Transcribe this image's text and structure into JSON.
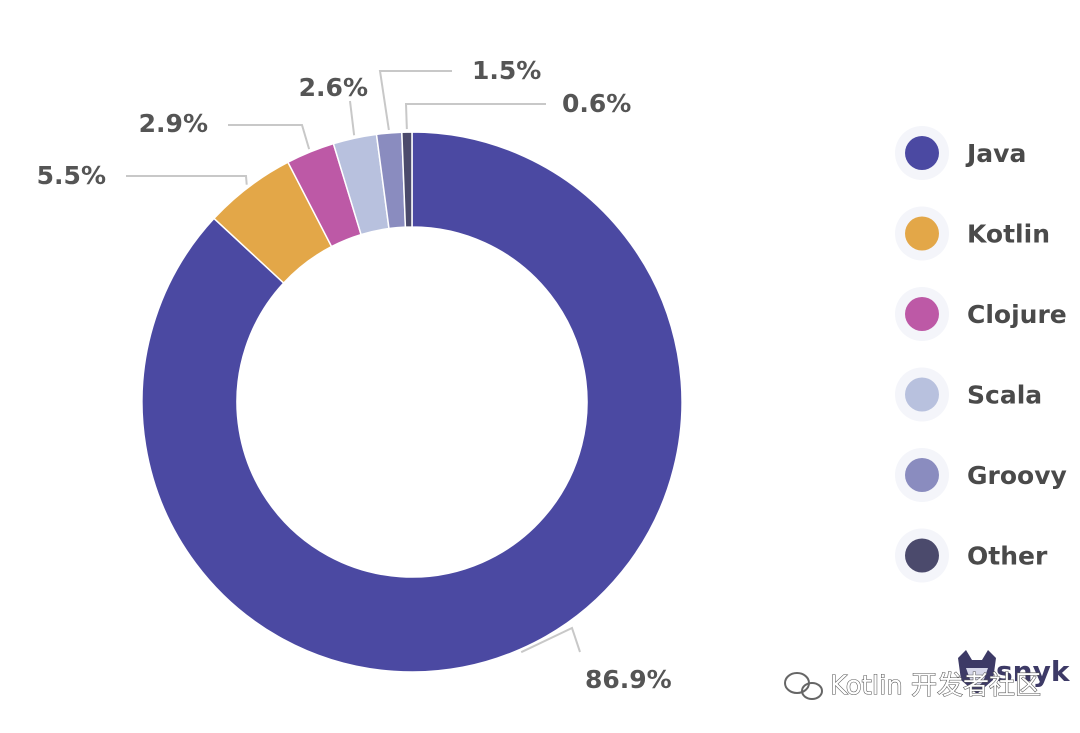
{
  "chart_data": {
    "type": "pie",
    "donut": true,
    "title": "",
    "categories": [
      "Java",
      "Kotlin",
      "Clojure",
      "Scala",
      "Groovy",
      "Other"
    ],
    "values": [
      86.9,
      5.5,
      2.9,
      2.6,
      1.5,
      0.6
    ],
    "value_labels": [
      "86.9%",
      "5.5%",
      "2.9%",
      "2.6%",
      "1.5%",
      "0.6%"
    ],
    "colors": [
      "#4b49a2",
      "#e3a748",
      "#bd59a6",
      "#b8c1de",
      "#8a8cbf",
      "#4b4a6c"
    ],
    "legend": "right"
  },
  "branding": {
    "logo_text": "snyk"
  },
  "watermark": {
    "text": "Kotlin 开发者社区"
  }
}
